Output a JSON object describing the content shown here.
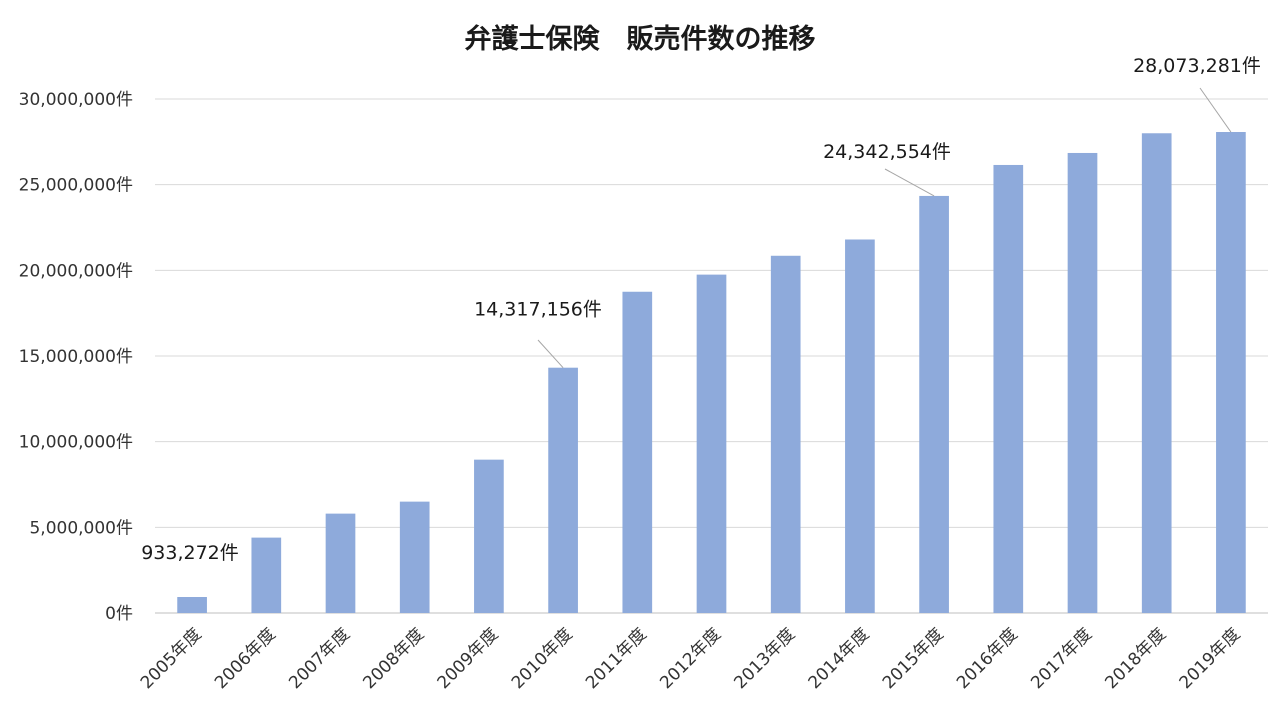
{
  "chart_data": {
    "type": "bar",
    "title": "弁護士保険　販売件数の推移",
    "xlabel": "",
    "ylabel": "",
    "categories": [
      "2005年度",
      "2006年度",
      "2007年度",
      "2008年度",
      "2009年度",
      "2010年度",
      "2011年度",
      "2012年度",
      "2013年度",
      "2014年度",
      "2015年度",
      "2016年度",
      "2017年度",
      "2018年度",
      "2019年度"
    ],
    "values": [
      933272,
      4400000,
      5800000,
      6500000,
      8950000,
      14317156,
      18750000,
      19750000,
      20850000,
      21800000,
      24342554,
      26150000,
      26850000,
      28000000,
      28073281
    ],
    "ylim": [
      0,
      30000000
    ],
    "yticks": [
      0,
      5000000,
      10000000,
      15000000,
      20000000,
      25000000,
      30000000
    ],
    "ytick_labels": [
      "0件",
      "5,000,000件",
      "10,000,000件",
      "15,000,000件",
      "20,000,000件",
      "25,000,000件",
      "30,000,000件"
    ],
    "data_labels": [
      {
        "index": 0,
        "text": "933,272件"
      },
      {
        "index": 5,
        "text": "14,317,156件"
      },
      {
        "index": 10,
        "text": "24,342,554件"
      },
      {
        "index": 14,
        "text": "28,073,281件"
      }
    ],
    "bar_color": "#8EAADB",
    "grid": true,
    "legend": "none"
  }
}
